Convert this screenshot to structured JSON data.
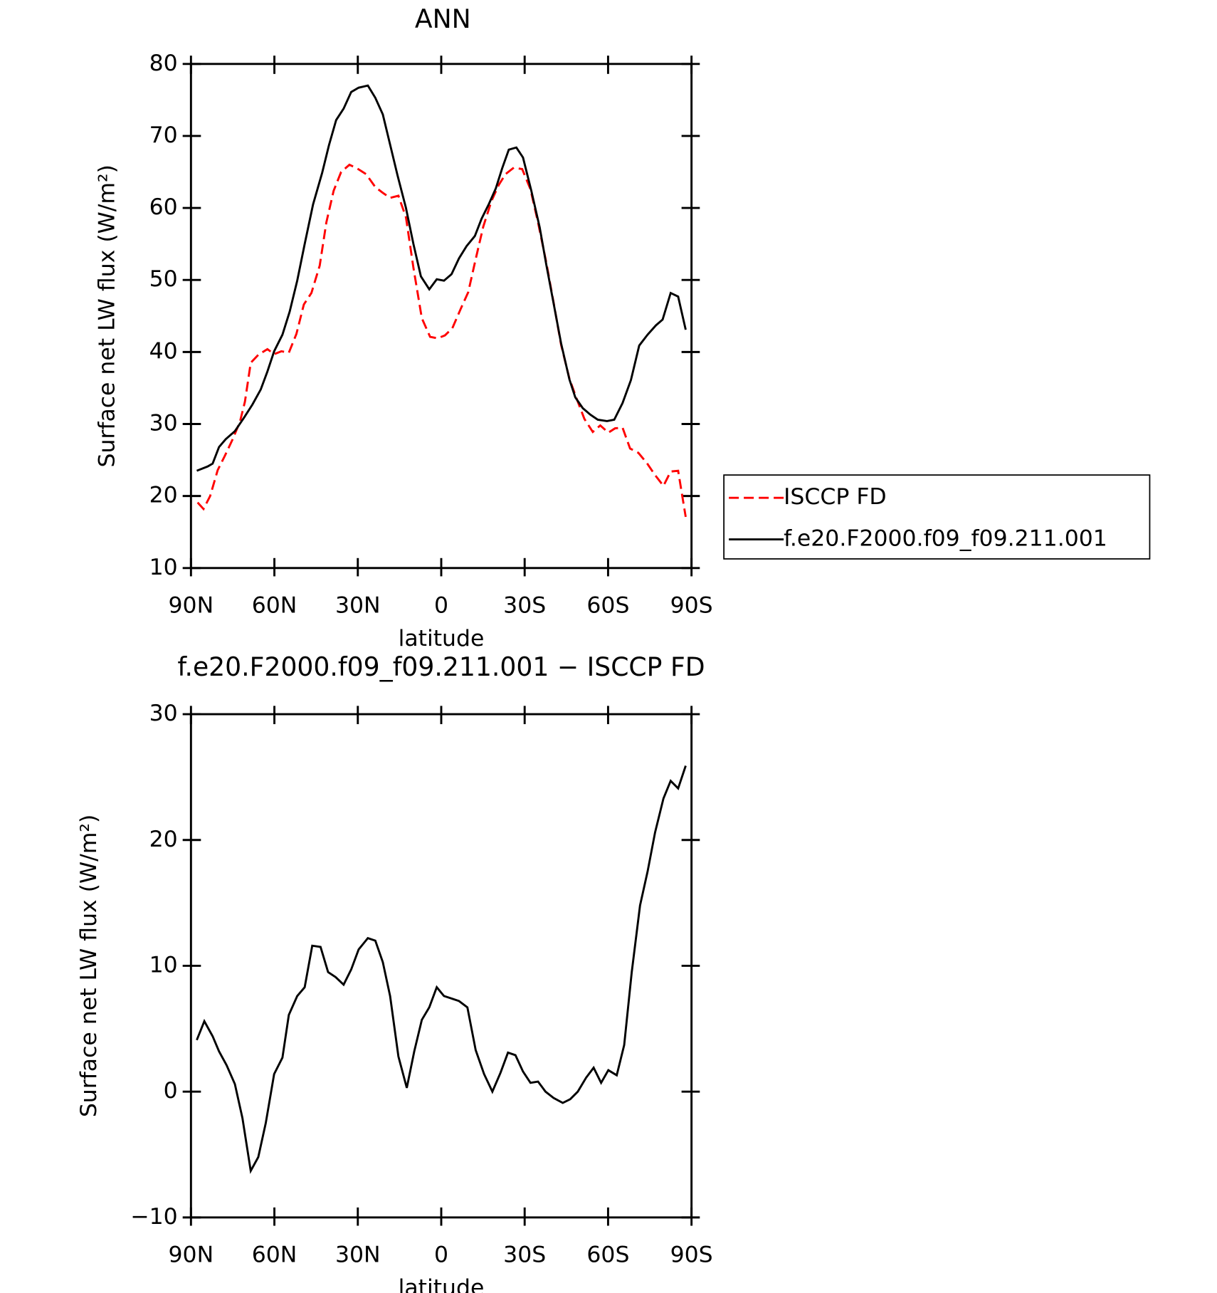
{
  "chart_data": [
    {
      "type": "line",
      "title": "ANN",
      "xlabel": "latitude",
      "ylabel": "Surface net LW flux (W/m²)",
      "xlim": [
        90,
        -90
      ],
      "xticks": [
        {
          "value": 90,
          "label": "90N"
        },
        {
          "value": 60,
          "label": "60N"
        },
        {
          "value": 30,
          "label": "30N"
        },
        0,
        {
          "value": -30,
          "label": "30S"
        },
        {
          "value": -60,
          "label": "60S"
        },
        {
          "value": -90,
          "label": "90S"
        }
      ],
      "ylim": [
        10,
        80
      ],
      "yticks": [
        10,
        20,
        30,
        40,
        50,
        60,
        70,
        80
      ],
      "legend": "right",
      "series": [
        {
          "name": "ISCCP FD",
          "color": "#ff0000",
          "line_style": "dashed",
          "x": [
            87.6,
            85.5,
            83.1,
            80.4,
            77.8,
            75.1,
            72.4,
            70.6,
            68.5,
            65.8,
            62.5,
            60.1,
            57.5,
            54.8,
            52.1,
            49.4,
            46.7,
            43.7,
            41.3,
            38.7,
            36.0,
            33.0,
            30.3,
            27.0,
            23.7,
            21.0,
            18.4,
            15.4,
            12.7,
            10.0,
            7.0,
            4.0,
            1.3,
            -1.3,
            -4.0,
            -7.0,
            -9.7,
            -12.4,
            -15.1,
            -18.1,
            -20.7,
            -23.1,
            -26.1,
            -29.1,
            -32.1,
            -34.8,
            -37.8,
            -40.4,
            -43.1,
            -46.1,
            -48.5,
            -51.5,
            -54.5,
            -57.2,
            -60.1,
            -62.5,
            -65.2,
            -67.9,
            -70.9,
            -73.9,
            -76.9,
            -79.9,
            -82.5,
            -85.2,
            -87.9
          ],
          "values": [
            19.1,
            18.2,
            20.0,
            23.6,
            25.6,
            27.8,
            30.3,
            33.1,
            38.5,
            39.6,
            40.4,
            39.7,
            40.1,
            39.9,
            42.5,
            46.6,
            48.2,
            52.0,
            58.0,
            62.4,
            65.0,
            66.0,
            65.5,
            64.7,
            62.9,
            62.1,
            61.4,
            61.7,
            58.7,
            51.7,
            44.7,
            42.1,
            41.9,
            42.3,
            43.3,
            46.0,
            48.3,
            52.9,
            57.4,
            61.0,
            63.2,
            64.7,
            65.6,
            65.4,
            62.6,
            58.0,
            52.4,
            46.9,
            41.0,
            36.3,
            33.7,
            30.7,
            28.9,
            29.8,
            28.8,
            29.4,
            29.5,
            26.6,
            26.0,
            24.6,
            22.9,
            21.4,
            23.4,
            23.5,
            17.1
          ]
        },
        {
          "name": "f.e20.F2000.f09_f09.211.001",
          "color": "#000000",
          "line_style": "solid",
          "x": [
            87.9,
            84.0,
            82.2,
            79.9,
            77.5,
            74.2,
            70.9,
            67.9,
            64.9,
            62.5,
            60.1,
            57.1,
            54.5,
            51.8,
            49.1,
            46.1,
            42.8,
            40.4,
            37.8,
            35.1,
            32.4,
            29.7,
            26.4,
            23.7,
            21.0,
            18.4,
            15.7,
            12.7,
            10.0,
            7.3,
            4.3,
            1.6,
            -1.0,
            -3.7,
            -6.4,
            -9.1,
            -12.1,
            -14.5,
            -17.2,
            -19.6,
            -21.9,
            -24.3,
            -27.0,
            -29.4,
            -32.4,
            -35.4,
            -37.8,
            -40.4,
            -43.1,
            -46.1,
            -48.2,
            -50.9,
            -53.6,
            -56.3,
            -59.6,
            -62.2,
            -65.2,
            -68.2,
            -71.2,
            -74.2,
            -77.2,
            -79.6,
            -82.5,
            -85.2,
            -87.9
          ],
          "values": [
            23.5,
            24.1,
            24.5,
            26.8,
            27.9,
            29.0,
            30.9,
            32.7,
            34.8,
            37.3,
            40.1,
            42.4,
            45.6,
            49.9,
            55.0,
            60.5,
            64.9,
            68.7,
            72.2,
            73.8,
            76.1,
            76.7,
            77.0,
            75.3,
            73.0,
            68.8,
            64.5,
            60.0,
            55.0,
            50.5,
            48.7,
            50.1,
            49.9,
            50.8,
            53.0,
            54.7,
            56.1,
            58.5,
            60.6,
            62.7,
            65.5,
            68.1,
            68.4,
            67.0,
            62.4,
            57.3,
            52.1,
            46.8,
            41.2,
            36.2,
            33.7,
            32.2,
            31.3,
            30.6,
            30.4,
            30.6,
            32.9,
            36.1,
            40.9,
            42.4,
            43.7,
            44.5,
            48.2,
            47.7,
            43.1
          ]
        }
      ]
    },
    {
      "type": "line",
      "title": "f.e20.F2000.f09_f09.211.001 − ISCCP FD",
      "xlabel": "latitude",
      "ylabel": "Surface net LW flux (W/m²)",
      "xlim": [
        90,
        -90
      ],
      "xticks": [
        {
          "value": 90,
          "label": "90N"
        },
        {
          "value": 60,
          "label": "60N"
        },
        {
          "value": 30,
          "label": "30N"
        },
        0,
        {
          "value": -30,
          "label": "30S"
        },
        {
          "value": -60,
          "label": "60S"
        },
        {
          "value": -90,
          "label": "90S"
        }
      ],
      "ylim": [
        -10,
        30
      ],
      "yticks": [
        {
          "value": -10,
          "label": "−10"
        },
        0,
        10,
        20,
        30
      ],
      "series": [
        {
          "color": "#000000",
          "line_style": "solid",
          "x": [
            87.9,
            85.2,
            82.2,
            79.9,
            77.2,
            74.2,
            71.5,
            68.5,
            65.8,
            63.1,
            60.1,
            57.1,
            54.8,
            51.8,
            49.1,
            46.4,
            43.4,
            40.7,
            38.0,
            35.1,
            32.4,
            29.7,
            26.4,
            23.7,
            21.0,
            18.4,
            15.4,
            12.4,
            9.7,
            7.0,
            4.3,
            1.6,
            -1.0,
            -3.7,
            -6.4,
            -9.4,
            -12.4,
            -15.4,
            -18.4,
            -21.3,
            -24.0,
            -26.7,
            -29.4,
            -32.1,
            -34.8,
            -37.5,
            -40.4,
            -43.7,
            -46.4,
            -49.1,
            -52.1,
            -54.8,
            -57.5,
            -60.1,
            -63.1,
            -65.8,
            -68.5,
            -71.5,
            -74.2,
            -76.9,
            -79.9,
            -82.5,
            -85.2,
            -87.9
          ],
          "values": [
            4.1,
            5.6,
            4.4,
            3.2,
            2.1,
            0.6,
            -2.1,
            -6.3,
            -5.2,
            -2.5,
            1.4,
            2.7,
            6.1,
            7.6,
            8.3,
            11.6,
            11.5,
            9.5,
            9.1,
            8.5,
            9.7,
            11.3,
            12.2,
            12.0,
            10.3,
            7.6,
            2.8,
            0.3,
            3.2,
            5.7,
            6.7,
            8.3,
            7.6,
            7.4,
            7.2,
            6.7,
            3.3,
            1.4,
            0.0,
            1.5,
            3.1,
            2.9,
            1.6,
            0.7,
            0.8,
            0.0,
            -0.5,
            -0.9,
            -0.6,
            0.0,
            1.1,
            1.9,
            0.7,
            1.7,
            1.3,
            3.7,
            9.5,
            14.8,
            17.5,
            20.6,
            23.3,
            24.7,
            24.1,
            25.9
          ]
        }
      ]
    }
  ]
}
